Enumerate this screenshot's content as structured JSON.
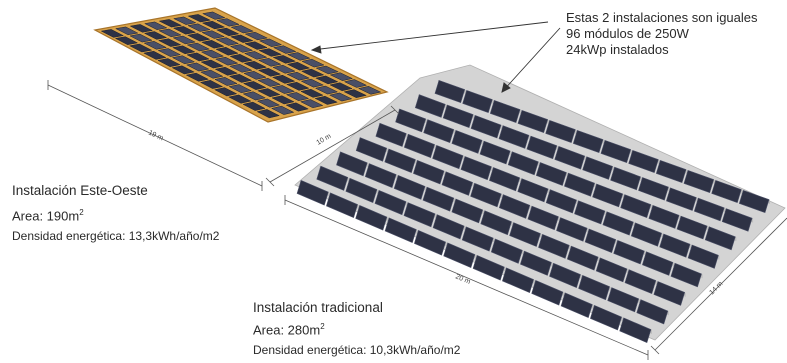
{
  "note": {
    "lines": [
      "Estas 2 instalaciones son iguales",
      "96 módulos de 250W",
      "24kWp instalados"
    ]
  },
  "east_west": {
    "title": "Instalación Este-Oeste",
    "area_label": "Area: 190m",
    "area_sup": "2",
    "density": "Densidad energética: 13,3kWh/año/m2",
    "dim_length": "19 m",
    "dim_width": "10 m"
  },
  "traditional": {
    "title": "Instalación tradicional",
    "area_label": "Area: 280m",
    "area_sup": "2",
    "density": "Densidad energética: 10,3kWh/año/m2",
    "dim_length": "20 m",
    "dim_width": "14 m"
  },
  "colors": {
    "frame": "#d9a34a",
    "frame_dark": "#a8742a",
    "panel": "#2e3245",
    "panel_light": "#4a4f66",
    "base": "#d4d4d4",
    "row_back": "#bdbdbd"
  }
}
